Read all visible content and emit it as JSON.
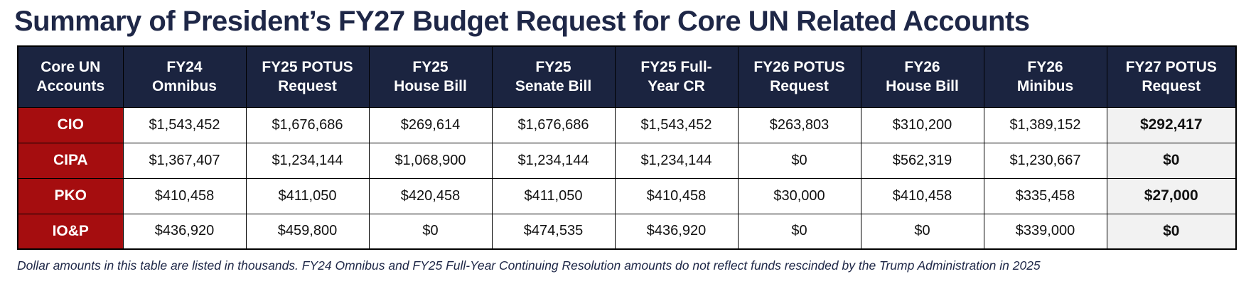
{
  "page": {
    "title": "Summary of President’s FY27 Budget Request for Core UN Related Accounts",
    "footnote": "Dollar amounts in this table are listed in thousands. FY24 Omnibus and FY25 Full-Year Continuing Resolution amounts do not reflect funds rescinded by the Trump Administration in 2025"
  },
  "colors": {
    "title_text": "#1e2747",
    "header_bg": "#1b2440",
    "header_text": "#ffffff",
    "row_label_bg": "#a50d0f",
    "row_label_text": "#ffffff",
    "highlight_column_bg": "#f2f2f2",
    "border": "#000000"
  },
  "chart_data": {
    "type": "table",
    "title": "Summary of President’s FY27 Budget Request for Core UN Related Accounts",
    "units": "thousands of dollars",
    "columns": [
      "Core UN\nAccounts",
      "FY24\nOmnibus",
      "FY25 POTUS\nRequest",
      "FY25\nHouse Bill",
      "FY25\nSenate Bill",
      "FY25 Full-\nYear CR",
      "FY26 POTUS\nRequest",
      "FY26\nHouse Bill",
      "FY26\nMinibus",
      "FY27 POTUS\nRequest"
    ],
    "rows": [
      {
        "account": "CIO",
        "values": [
          "$1,543,452",
          "$1,676,686",
          "$269,614",
          "$1,676,686",
          "$1,543,452",
          "$263,803",
          "$310,200",
          "$1,389,152",
          "$292,417"
        ]
      },
      {
        "account": "CIPA",
        "values": [
          "$1,367,407",
          "$1,234,144",
          "$1,068,900",
          "$1,234,144",
          "$1,234,144",
          "$0",
          "$562,319",
          "$1,230,667",
          "$0"
        ]
      },
      {
        "account": "PKO",
        "values": [
          "$410,458",
          "$411,050",
          "$420,458",
          "$411,050",
          "$410,458",
          "$30,000",
          "$410,458",
          "$335,458",
          "$27,000"
        ]
      },
      {
        "account": "IO&P",
        "values": [
          "$436,920",
          "$459,800",
          "$0",
          "$474,535",
          "$436,920",
          "$0",
          "$0",
          "$339,000",
          "$0"
        ]
      }
    ]
  }
}
